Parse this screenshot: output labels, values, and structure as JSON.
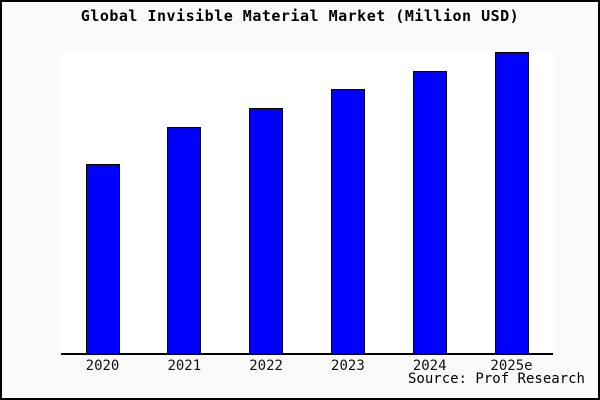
{
  "chart_data": {
    "type": "bar",
    "title": "Global Invisible Material Market (Million USD)",
    "categories": [
      "2020",
      "2021",
      "2022",
      "2023",
      "2024",
      "2025e"
    ],
    "values": [
      62.8,
      75.1,
      81.4,
      87.7,
      93.7,
      100
    ],
    "xlabel": "",
    "ylabel": "",
    "ylim": [
      0,
      100
    ],
    "y_axis_tick_labels_visible": false,
    "grid": false,
    "legend": false,
    "source": "Source: Prof Research"
  },
  "colors": {
    "bar_fill": "#0000ff",
    "bar_border": "#000000",
    "figure_background": "#fafafa",
    "plot_background": "#ffffff",
    "axis_line": "#000000",
    "frame_border": "#000000",
    "text": "#000000"
  }
}
